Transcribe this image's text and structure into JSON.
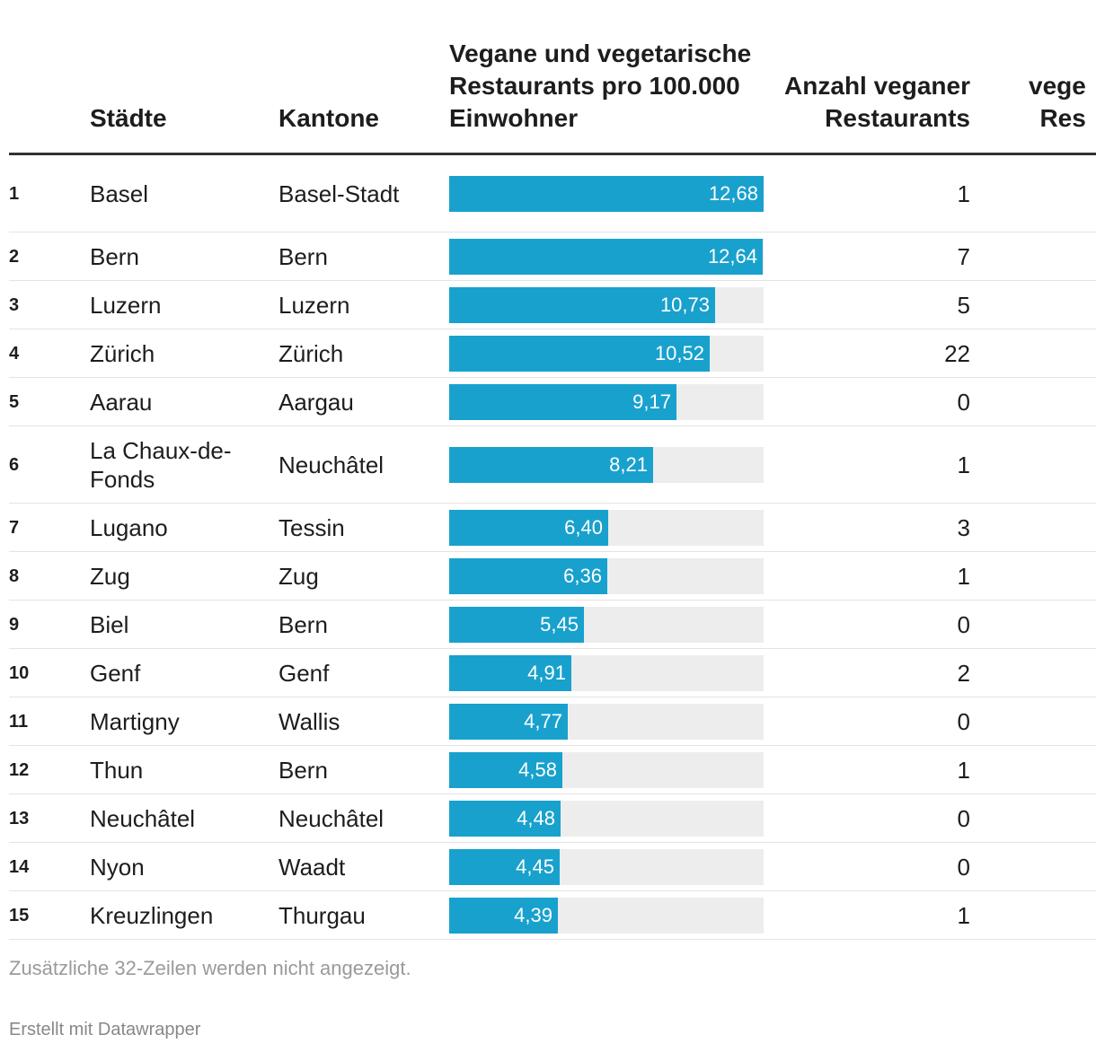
{
  "header": {
    "city": "Städte",
    "canton": "Kantone",
    "bar": "Vegane und vegetarische Restaurants pro 100.000 Einwohner",
    "count": "Anzahl veganer Restaurants",
    "extra": "vege\nRes"
  },
  "colors": {
    "bar": "#18a1cd",
    "track": "#ededed",
    "rule": "#333333"
  },
  "chart_data": {
    "type": "table",
    "title": "",
    "columns": [
      "Städte",
      "Kantone",
      "Vegane und vegetarische Restaurants pro 100.000 Einwohner",
      "Anzahl veganer Restaurants"
    ],
    "bar_max": 12.68,
    "rows": [
      {
        "rank": "1",
        "city": "Basel",
        "canton": "Basel-Stadt",
        "value": 12.68,
        "label": "12,68",
        "count": "1"
      },
      {
        "rank": "2",
        "city": "Bern",
        "canton": "Bern",
        "value": 12.64,
        "label": "12,64",
        "count": "7"
      },
      {
        "rank": "3",
        "city": "Luzern",
        "canton": "Luzern",
        "value": 10.73,
        "label": "10,73",
        "count": "5"
      },
      {
        "rank": "4",
        "city": "Zürich",
        "canton": "Zürich",
        "value": 10.52,
        "label": "10,52",
        "count": "22"
      },
      {
        "rank": "5",
        "city": "Aarau",
        "canton": "Aargau",
        "value": 9.17,
        "label": "9,17",
        "count": "0"
      },
      {
        "rank": "6",
        "city": "La Chaux-de-Fonds",
        "canton": "Neuchâtel",
        "value": 8.21,
        "label": "8,21",
        "count": "1"
      },
      {
        "rank": "7",
        "city": "Lugano",
        "canton": "Tessin",
        "value": 6.4,
        "label": "6,40",
        "count": "3"
      },
      {
        "rank": "8",
        "city": "Zug",
        "canton": "Zug",
        "value": 6.36,
        "label": "6,36",
        "count": "1"
      },
      {
        "rank": "9",
        "city": "Biel",
        "canton": "Bern",
        "value": 5.45,
        "label": "5,45",
        "count": "0"
      },
      {
        "rank": "10",
        "city": "Genf",
        "canton": "Genf",
        "value": 4.91,
        "label": "4,91",
        "count": "2"
      },
      {
        "rank": "11",
        "city": "Martigny",
        "canton": "Wallis",
        "value": 4.77,
        "label": "4,77",
        "count": "0"
      },
      {
        "rank": "12",
        "city": "Thun",
        "canton": "Bern",
        "value": 4.58,
        "label": "4,58",
        "count": "1"
      },
      {
        "rank": "13",
        "city": "Neuchâtel",
        "canton": "Neuchâtel",
        "value": 4.48,
        "label": "4,48",
        "count": "0"
      },
      {
        "rank": "14",
        "city": "Nyon",
        "canton": "Waadt",
        "value": 4.45,
        "label": "4,45",
        "count": "0"
      },
      {
        "rank": "15",
        "city": "Kreuzlingen",
        "canton": "Thurgau",
        "value": 4.39,
        "label": "4,39",
        "count": "1"
      }
    ]
  },
  "footer": {
    "note": "Zusätzliche 32-Zeilen werden nicht angezeigt.",
    "credit": "Erstellt mit Datawrapper"
  }
}
